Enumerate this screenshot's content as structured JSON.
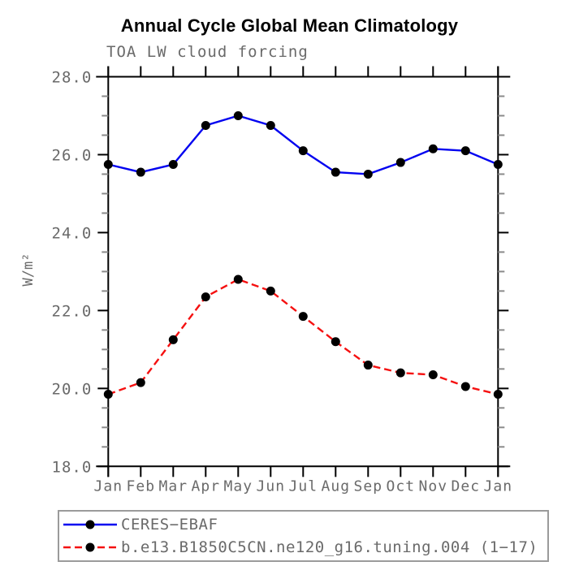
{
  "chart_data": {
    "type": "line",
    "title": "Annual Cycle Global Mean Climatology",
    "subtitle": "TOA LW cloud forcing",
    "xlabel": "",
    "ylabel": "W/m²",
    "categories": [
      "Jan",
      "Feb",
      "Mar",
      "Apr",
      "May",
      "Jun",
      "Jul",
      "Aug",
      "Sep",
      "Oct",
      "Nov",
      "Dec",
      "Jan"
    ],
    "ylim": [
      18.0,
      28.0
    ],
    "ytick_step": 2.0,
    "yminor_step": 0.5,
    "ytick_format_decimals": 1,
    "grid": false,
    "legend_position": "bottom-left-box",
    "series": [
      {
        "name": "CERES−EBAF",
        "color": "#0202f0",
        "line_style": "solid",
        "marker": "circle",
        "marker_color": "#000000",
        "values": [
          25.75,
          25.55,
          25.75,
          26.75,
          27.0,
          26.75,
          26.1,
          25.55,
          25.5,
          25.8,
          26.15,
          26.1,
          25.75
        ]
      },
      {
        "name": "b.e13.B1850C5CN.ne120_g16.tuning.004 (1−17)",
        "color": "#f51010",
        "line_style": "dashed",
        "marker": "circle",
        "marker_color": "#000000",
        "values": [
          19.85,
          20.15,
          21.25,
          22.35,
          22.8,
          22.5,
          21.85,
          21.2,
          20.6,
          20.4,
          20.35,
          20.05,
          19.85
        ]
      }
    ],
    "style_colors": {
      "axis": "#000000",
      "minor_tick": "#8a8a8a",
      "labels": "#6a6a6a",
      "legend_border": "#9b9b9b"
    }
  }
}
